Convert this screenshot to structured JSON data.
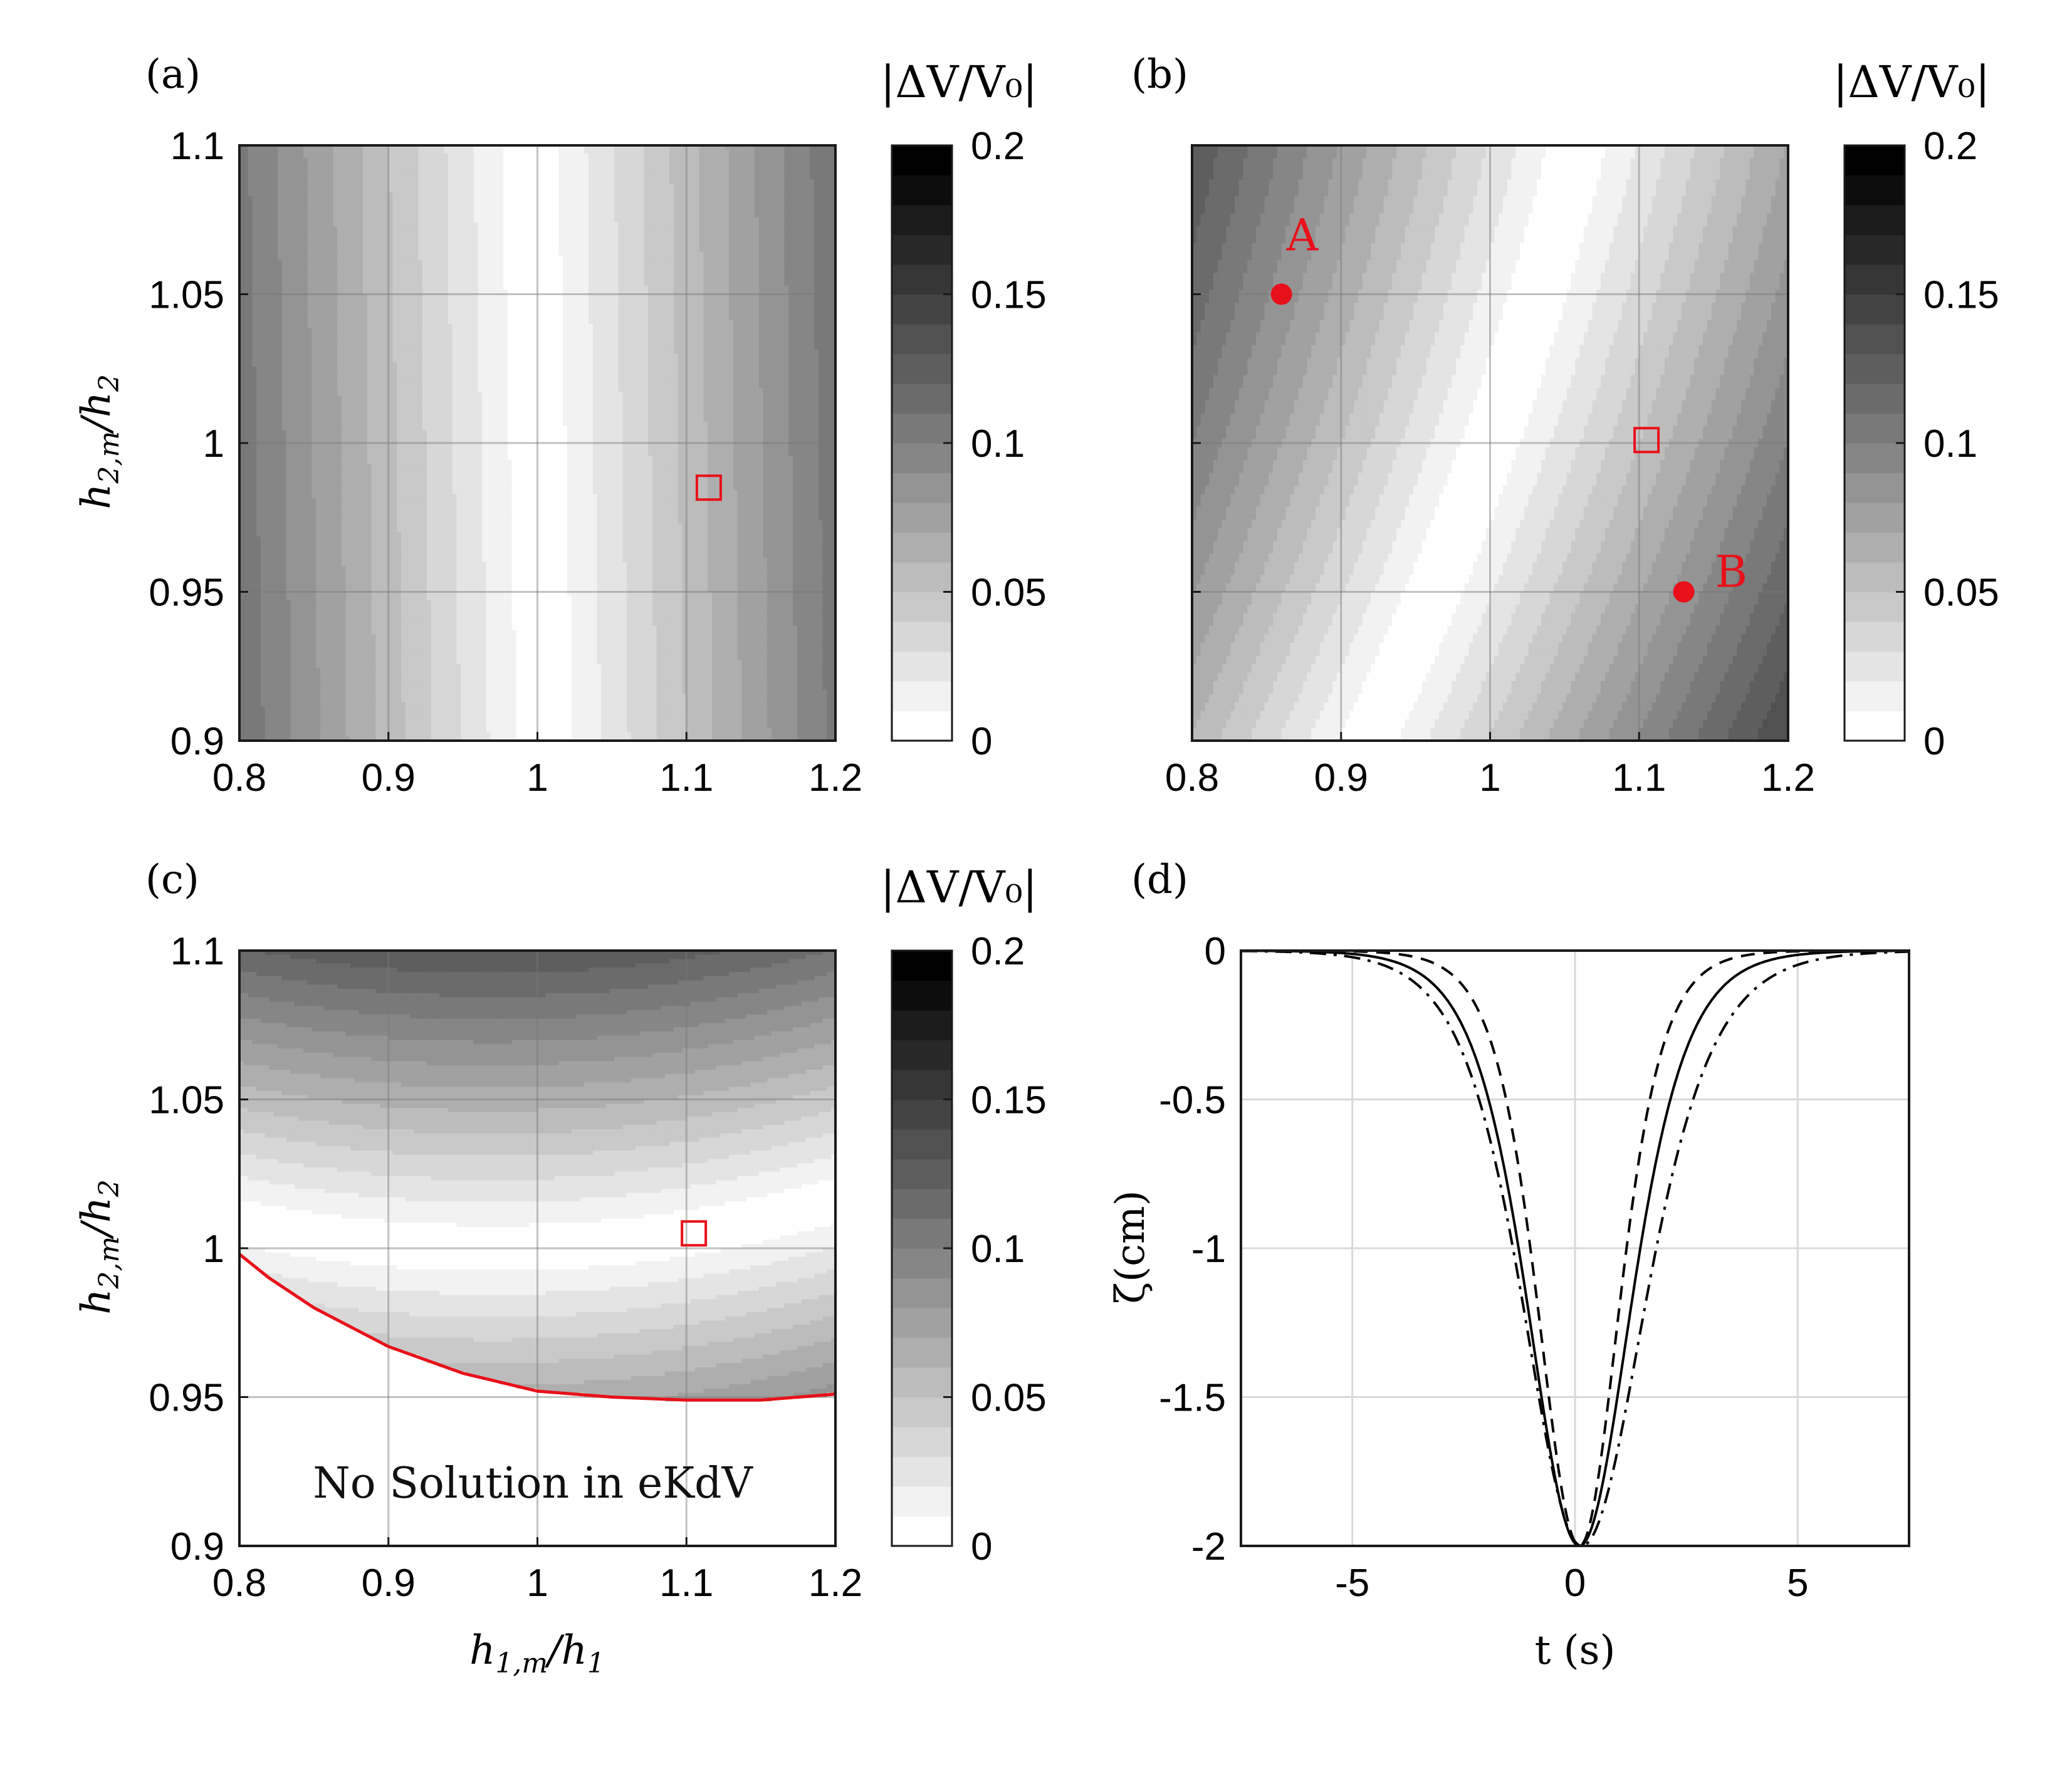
{
  "chart_data": [
    {
      "type": "heatmap",
      "panel_label": "(a)",
      "colorbar_title": "|ΔV/V₀|",
      "colorbar_ticks": [
        "0",
        "0.05",
        "0.1",
        "0.15",
        "0.2"
      ],
      "clim": [
        0,
        0.2
      ],
      "levels": 20,
      "xlim": [
        0.8,
        1.2
      ],
      "ylim": [
        0.9,
        1.1
      ],
      "xticks": [
        "0.8",
        "0.9",
        "1",
        "1.1",
        "1.2"
      ],
      "yticks": [
        "0.9",
        "0.95",
        "1",
        "1.05",
        "1.1"
      ],
      "xlabel": "",
      "ylabel": "h2,m/h2",
      "grid": true,
      "field": "|ΔV/V0| ≈ 0.53·|(x − 1) + 0.05·(y − 1)| ; minimum band near x ≈ 1",
      "markers": [
        {
          "shape": "square",
          "x": 1.115,
          "y": 0.985,
          "color": "#e8101a"
        }
      ]
    },
    {
      "type": "heatmap",
      "panel_label": "(b)",
      "colorbar_title": "|ΔV/V₀|",
      "colorbar_ticks": [
        "0",
        "0.05",
        "0.1",
        "0.15",
        "0.2"
      ],
      "clim": [
        0,
        0.2
      ],
      "levels": 20,
      "xlim": [
        0.8,
        1.2
      ],
      "ylim": [
        0.9,
        1.1
      ],
      "xticks": [
        "0.8",
        "0.9",
        "1",
        "1.1",
        "1.2"
      ],
      "yticks": [],
      "grid": true,
      "field": "|ΔV/V0| ≈ 0.5·|(x − 1) − 0.7·(y − 1) + 1.2·(y − 1)²| ; diagonal minimum band",
      "markers": [
        {
          "shape": "square",
          "x": 1.105,
          "y": 1.001,
          "color": "#e8101a"
        },
        {
          "shape": "dot",
          "x": 0.86,
          "y": 1.05,
          "label": "A",
          "color": "#e8101a"
        },
        {
          "shape": "dot",
          "x": 1.13,
          "y": 0.95,
          "label": "B",
          "color": "#e8101a"
        }
      ]
    },
    {
      "type": "heatmap",
      "panel_label": "(c)",
      "colorbar_title": "|ΔV/V₀|",
      "colorbar_ticks": [
        "0",
        "0.05",
        "0.1",
        "0.15",
        "0.2"
      ],
      "clim": [
        0,
        0.2
      ],
      "levels": 20,
      "xlim": [
        0.8,
        1.2
      ],
      "ylim": [
        0.9,
        1.1
      ],
      "xticks": [
        "0.8",
        "0.9",
        "1",
        "1.1",
        "1.2"
      ],
      "yticks": [
        "0.9",
        "0.95",
        "1",
        "1.05",
        "1.1"
      ],
      "xlabel": "h1,m/h1",
      "ylabel": "h2,m/h2",
      "grid": true,
      "field": "|ΔV/V0| ≈ 1.3·|y − y0(x)|, y0(x) = 1.0 + 0.3·(x − 0.97)² ; undefined below boundary",
      "boundary": {
        "color": "#e8101a",
        "x": [
          0.8,
          0.82,
          0.85,
          0.9,
          0.95,
          1.0,
          1.05,
          1.1,
          1.15,
          1.2
        ],
        "y": [
          0.998,
          0.99,
          0.98,
          0.967,
          0.958,
          0.952,
          0.95,
          0.949,
          0.949,
          0.951
        ]
      },
      "annotation": "No Solution in eKdV",
      "markers": [
        {
          "shape": "square",
          "x": 1.105,
          "y": 1.005,
          "color": "#e8101a"
        }
      ]
    },
    {
      "type": "line",
      "panel_label": "(d)",
      "xlim": [
        -7.5,
        7.5
      ],
      "ylim": [
        -2,
        0
      ],
      "xticks": [
        "-5",
        "0",
        "5"
      ],
      "xtick_values": [
        -5,
        0,
        5
      ],
      "yticks": [
        "-2",
        "-1.5",
        "-1",
        "-0.5",
        "0"
      ],
      "ytick_values": [
        -2,
        -1.5,
        -1,
        -0.5,
        0
      ],
      "xlabel": "t (s)",
      "ylabel": "ζ(cm)",
      "grid": true,
      "series": [
        {
          "style": "solid",
          "amplitude": -2,
          "center": 0.1,
          "left_width": 1.55,
          "right_width": 1.55
        },
        {
          "style": "dashed",
          "amplitude": -2,
          "center": 0.1,
          "left_width": 1.25,
          "right_width": 1.2
        },
        {
          "style": "dashdot",
          "amplitude": -2,
          "center": 0.15,
          "left_width": 1.75,
          "right_width": 1.9
        }
      ]
    }
  ]
}
